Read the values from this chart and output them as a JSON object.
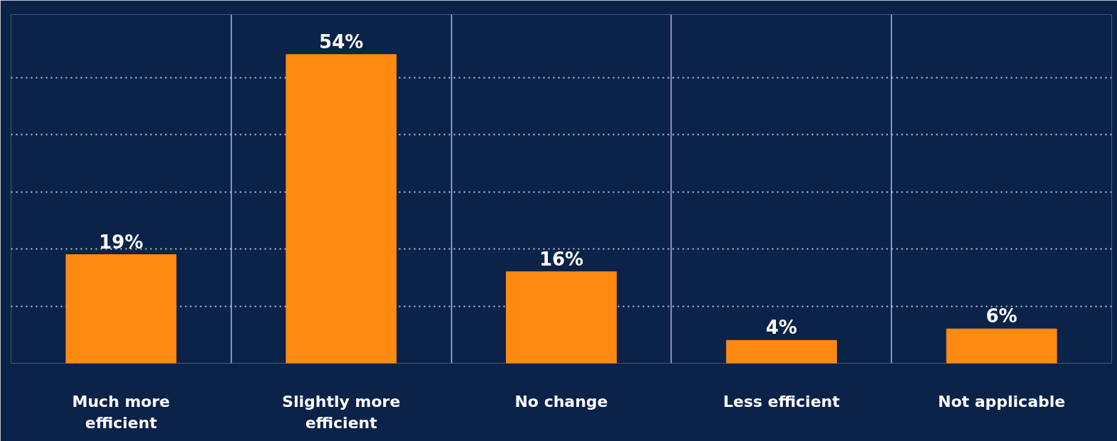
{
  "chart_data": {
    "type": "bar",
    "categories": [
      "Much more efficient",
      "Slightly more efficient",
      "No change",
      "Less efficient",
      "Not applicable"
    ],
    "values": [
      19,
      54,
      16,
      4,
      6
    ],
    "value_labels": [
      "19%",
      "54%",
      "16%",
      "4%",
      "6%"
    ],
    "color": "#ff8a12",
    "ylim": [
      0,
      61
    ],
    "yticks": [
      {
        "value": 0,
        "label": null
      },
      {
        "value": 10,
        "label": null
      },
      {
        "value": 20,
        "label": null
      },
      {
        "value": 30,
        "label": null
      },
      {
        "value": 40,
        "label": null
      },
      {
        "value": 50,
        "label": null
      }
    ],
    "tick_labels": "x",
    "grid": true
  }
}
